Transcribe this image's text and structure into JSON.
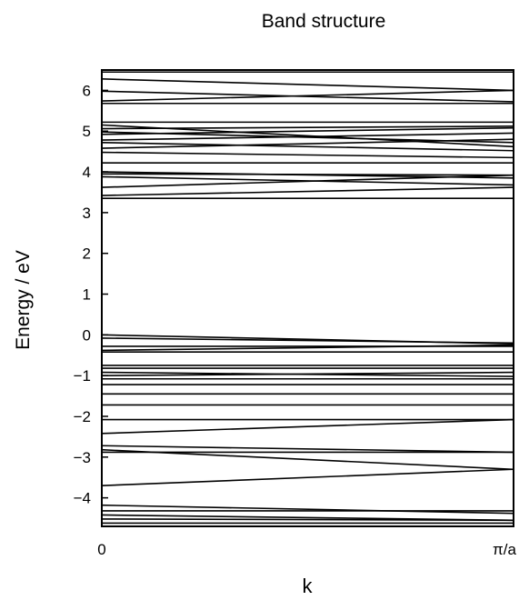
{
  "chart_data": {
    "type": "line",
    "title": "Band structure",
    "xlabel": "k",
    "ylabel": "Energy / eV",
    "xlim": [
      0,
      1
    ],
    "ylim": [
      -4.7,
      6.5
    ],
    "x_ticks": [
      "0",
      "π/a"
    ],
    "y_ticks": [
      6,
      5,
      4,
      3,
      2,
      1,
      0,
      -1,
      -2,
      -3,
      -4
    ],
    "y_tick_labels": [
      "6",
      "5",
      "4",
      "3",
      "2",
      "1",
      "0",
      "−1",
      "−2",
      "−3",
      "−4"
    ],
    "grid": false,
    "band_gap_eV": [
      0.0,
      3.35
    ],
    "bands": [
      [
        6.45,
        6.45
      ],
      [
        6.28,
        6.0
      ],
      [
        5.98,
        5.72
      ],
      [
        5.74,
        6.0
      ],
      [
        5.68,
        5.68
      ],
      [
        5.22,
        5.22
      ],
      [
        5.15,
        4.62
      ],
      [
        5.06,
        5.12
      ],
      [
        4.98,
        4.72
      ],
      [
        4.92,
        5.08
      ],
      [
        4.78,
        4.95
      ],
      [
        4.72,
        4.52
      ],
      [
        4.58,
        4.8
      ],
      [
        4.48,
        4.35
      ],
      [
        4.22,
        4.22
      ],
      [
        4.0,
        3.85
      ],
      [
        3.95,
        3.92
      ],
      [
        3.88,
        3.68
      ],
      [
        3.62,
        3.92
      ],
      [
        3.42,
        3.62
      ],
      [
        3.35,
        3.35
      ],
      [
        0.0,
        -0.22
      ],
      [
        -0.08,
        -0.2
      ],
      [
        -0.28,
        -0.28
      ],
      [
        -0.38,
        -0.25
      ],
      [
        -0.42,
        -0.42
      ],
      [
        -0.75,
        -0.75
      ],
      [
        -0.82,
        -0.82
      ],
      [
        -0.92,
        -1.02
      ],
      [
        -1.0,
        -0.92
      ],
      [
        -1.08,
        -1.08
      ],
      [
        -1.22,
        -1.22
      ],
      [
        -1.45,
        -1.45
      ],
      [
        -1.72,
        -1.72
      ],
      [
        -2.08,
        -2.08
      ],
      [
        -2.42,
        -2.08
      ],
      [
        -2.72,
        -2.88
      ],
      [
        -2.82,
        -3.3
      ],
      [
        -2.88,
        -2.88
      ],
      [
        -3.7,
        -3.3
      ],
      [
        -4.18,
        -4.38
      ],
      [
        -4.32,
        -4.32
      ],
      [
        -4.42,
        -4.55
      ],
      [
        -4.52,
        -4.55
      ],
      [
        -4.62,
        -4.62
      ]
    ]
  }
}
